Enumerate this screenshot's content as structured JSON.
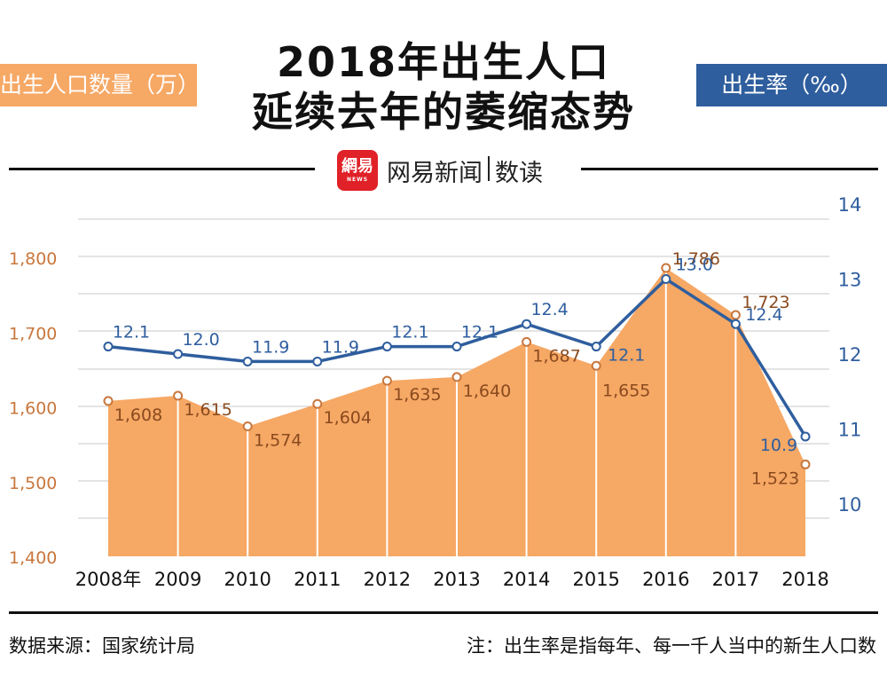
{
  "title_line1": "2018年出生人口",
  "title_line2": "延续去年的萎缩态势",
  "left_axis_tag": "出生人口数量（万）",
  "right_axis_tag": "出生率（‰）",
  "brand": {
    "logo_text": "網易",
    "logo_sub": "NEWS",
    "name": "网易新闻",
    "section": "数读"
  },
  "source": "数据来源：国家统计局",
  "note": "注：出生率是指每年、每一千人当中的新生人口数",
  "colors": {
    "population_fill": "#f6a865",
    "population_marker": "#c8773d",
    "rate_line": "#2f5e9e",
    "grid": "#c8c8c8"
  },
  "chart_data": {
    "type": "area",
    "categories": [
      "2008年",
      "2009",
      "2010",
      "2011",
      "2012",
      "2013",
      "2014",
      "2015",
      "2016",
      "2017",
      "2018"
    ],
    "series": [
      {
        "name": "出生人口数量（万）",
        "axis": "left",
        "kind": "area",
        "values": [
          1608,
          1615,
          1574,
          1604,
          1635,
          1640,
          1687,
          1655,
          1786,
          1723,
          1523
        ],
        "labels": [
          "1,608",
          "1,615",
          "1,574",
          "1,604",
          "1,635",
          "1,640",
          "1,687",
          "1,655",
          "1,786",
          "1,723",
          "1,523"
        ]
      },
      {
        "name": "出生率（‰）",
        "axis": "right",
        "kind": "line",
        "values": [
          12.1,
          12.0,
          11.9,
          11.9,
          12.1,
          12.1,
          12.4,
          12.1,
          13.0,
          12.4,
          10.9
        ],
        "labels": [
          "12.1",
          "12.0",
          "11.9",
          "11.9",
          "12.1",
          "12.1",
          "12.4",
          "12.1",
          "13.0",
          "12.4",
          "10.9"
        ]
      }
    ],
    "y_left": {
      "min": 1400,
      "max": 1800,
      "ticks": [
        "1,400",
        "1,500",
        "1,600",
        "1,700",
        "1,800"
      ],
      "tick_values": [
        1400,
        1500,
        1600,
        1700,
        1800
      ]
    },
    "y_right": {
      "min": 10,
      "max": 14,
      "ticks": [
        "10",
        "11",
        "12",
        "13",
        "14"
      ],
      "tick_values": [
        10,
        11,
        12,
        13,
        14
      ]
    },
    "grid": true
  }
}
